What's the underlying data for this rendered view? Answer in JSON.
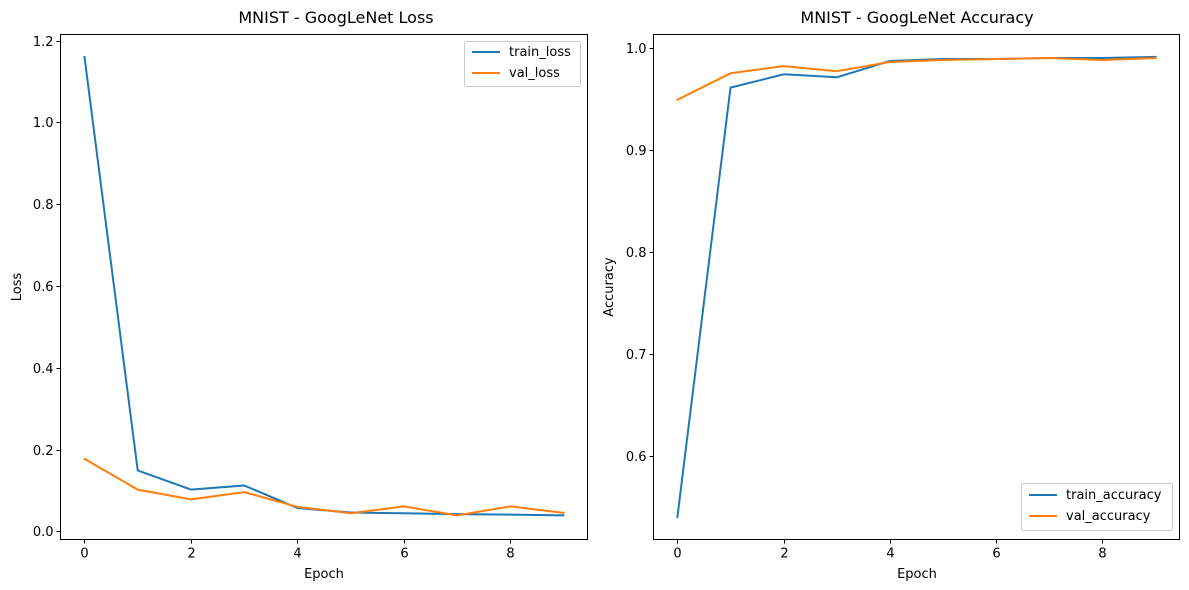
{
  "chart_data": [
    {
      "type": "line",
      "title": "MNIST - GoogLeNet Loss",
      "xlabel": "Epoch",
      "ylabel": "Loss",
      "x": [
        0,
        1,
        2,
        3,
        4,
        5,
        6,
        7,
        8,
        9
      ],
      "xlim": [
        -0.45,
        9.45
      ],
      "ylim": [
        -0.02,
        1.215
      ],
      "xticks": [
        0,
        2,
        4,
        6,
        8
      ],
      "xtick_labels": [
        "0",
        "2",
        "4",
        "6",
        "8"
      ],
      "yticks": [
        0.0,
        0.2,
        0.4,
        0.6,
        0.8,
        1.0,
        1.2
      ],
      "ytick_labels": [
        "0.0",
        "0.2",
        "0.4",
        "0.6",
        "0.8",
        "1.0",
        "1.2"
      ],
      "grid": false,
      "legend_position": "top-right",
      "series": [
        {
          "name": "train_loss",
          "color": "#1f77b4",
          "values": [
            1.16,
            0.149,
            0.102,
            0.112,
            0.057,
            0.046,
            0.044,
            0.042,
            0.041,
            0.039
          ]
        },
        {
          "name": "val_loss",
          "color": "#ff7f0e",
          "values": [
            0.177,
            0.102,
            0.078,
            0.096,
            0.06,
            0.044,
            0.061,
            0.039,
            0.061,
            0.045
          ]
        }
      ]
    },
    {
      "type": "line",
      "title": "MNIST - GoogLeNet Accuracy",
      "xlabel": "Epoch",
      "ylabel": "Accuracy",
      "x": [
        0,
        1,
        2,
        3,
        4,
        5,
        6,
        7,
        8,
        9
      ],
      "xlim": [
        -0.45,
        9.45
      ],
      "ylim": [
        0.518,
        1.013
      ],
      "xticks": [
        0,
        2,
        4,
        6,
        8
      ],
      "xtick_labels": [
        "0",
        "2",
        "4",
        "6",
        "8"
      ],
      "yticks": [
        0.6,
        0.7,
        0.8,
        0.9,
        1.0
      ],
      "ytick_labels": [
        "0.6",
        "0.7",
        "0.8",
        "0.9",
        "1.0"
      ],
      "grid": false,
      "legend_position": "bottom-right",
      "series": [
        {
          "name": "train_accuracy",
          "color": "#1f77b4",
          "values": [
            0.54,
            0.961,
            0.974,
            0.971,
            0.987,
            0.989,
            0.989,
            0.99,
            0.99,
            0.991
          ]
        },
        {
          "name": "val_accuracy",
          "color": "#ff7f0e",
          "values": [
            0.949,
            0.975,
            0.982,
            0.977,
            0.986,
            0.988,
            0.989,
            0.99,
            0.988,
            0.99
          ]
        }
      ]
    }
  ]
}
